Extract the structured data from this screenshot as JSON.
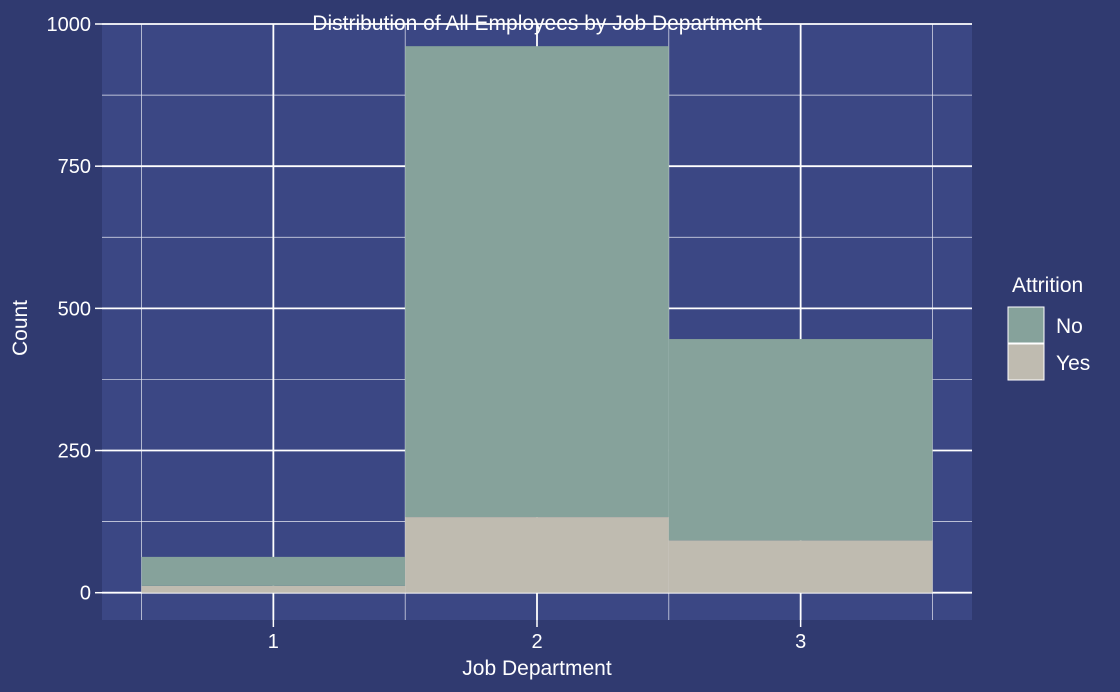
{
  "colors": {
    "background": "#303a70",
    "panel": "#3b4784",
    "grid_major": "#ffffff",
    "grid_minor": "#e6e8f2",
    "text": "#ffffff",
    "no": "#86a29b",
    "yes": "#bfbbb0"
  },
  "chart_data": {
    "type": "bar",
    "stacked": true,
    "title": "Distribution of All Employees by Job Department",
    "xlabel": "Job Department",
    "ylabel": "Count",
    "categories": [
      "1",
      "2",
      "3"
    ],
    "series": [
      {
        "name": "No",
        "values": [
          51,
          828,
          354
        ]
      },
      {
        "name": "Yes",
        "values": [
          12,
          133,
          92
        ]
      }
    ],
    "xlim": [
      0.35,
      3.65
    ],
    "ylim": [
      -48,
      1000
    ],
    "yticks": [
      0,
      250,
      500,
      750,
      1000
    ],
    "legend": {
      "title": "Attrition",
      "entries": [
        "No",
        "Yes"
      ],
      "position": "right"
    },
    "grid": true
  }
}
